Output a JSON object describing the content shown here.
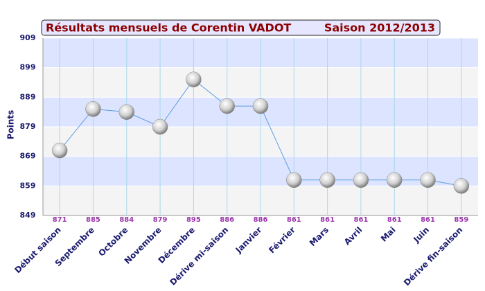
{
  "chart_data": {
    "type": "line",
    "title": "Résultats mensuels de  Corentin VADOT",
    "subtitle": "Saison 2012/2013",
    "y_label": "Points",
    "categories": [
      "Début saison",
      "Septembre",
      "Octobre",
      "Novembre",
      "Décembre",
      "Dérive mi-saison",
      "Janvier",
      "Février",
      "Mars",
      "Avril",
      "Mai",
      "Juin",
      "Dérive fin-saison"
    ],
    "series": [
      {
        "name": "Points",
        "color": "#5b9be0",
        "values": [
          871,
          885,
          884,
          879,
          895,
          886,
          886,
          861,
          861,
          861,
          861,
          861,
          859
        ]
      }
    ],
    "ylim": [
      849,
      909
    ],
    "yticks": [
      849,
      859,
      869,
      879,
      889,
      899,
      909
    ],
    "grid": true
  }
}
